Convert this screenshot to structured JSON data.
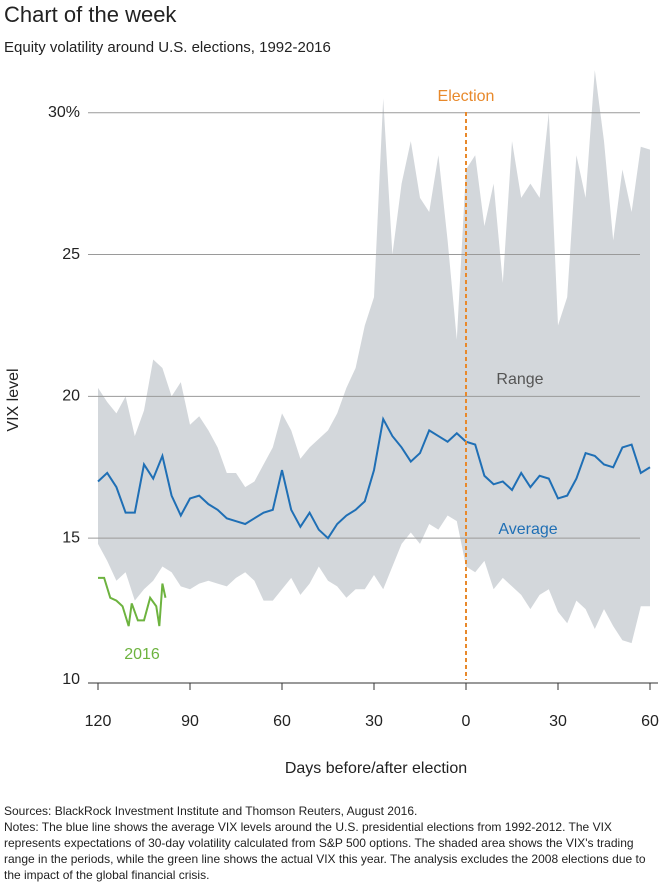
{
  "chart_data": {
    "type": "band-line",
    "title": "Chart of the week",
    "subtitle": "Equity volatility around U.S. elections, 1992-2016",
    "y_label": "VIX level",
    "x_label": "Days before/after election",
    "xlim": [
      -120,
      60
    ],
    "ylim": [
      10,
      32
    ],
    "xticks": [
      {
        "value": -120,
        "label": "120"
      },
      {
        "value": -90,
        "label": "90"
      },
      {
        "value": -60,
        "label": "60"
      },
      {
        "value": -30,
        "label": "30"
      },
      0,
      30,
      60
    ],
    "yticks": [
      10,
      15,
      20,
      25,
      {
        "value": 30,
        "label": "30%"
      }
    ],
    "grid": true,
    "annotations": [
      {
        "text": "Election",
        "x": 0,
        "color": "#e8892b"
      }
    ],
    "x": [
      -120,
      -117,
      -114,
      -111,
      -108,
      -105,
      -102,
      -99,
      -96,
      -93,
      -90,
      -87,
      -84,
      -81,
      -78,
      -75,
      -72,
      -69,
      -66,
      -63,
      -60,
      -57,
      -54,
      -51,
      -48,
      -45,
      -42,
      -39,
      -36,
      -33,
      -30,
      -27,
      -24,
      -21,
      -18,
      -15,
      -12,
      -9,
      -6,
      -3,
      0,
      3,
      6,
      9,
      12,
      15,
      18,
      21,
      24,
      27,
      30,
      33,
      36,
      39,
      42,
      45,
      48,
      51,
      54,
      57,
      60
    ],
    "series": [
      {
        "name": "Range",
        "color": "#d3d7db",
        "high": [
          20.3,
          19.8,
          19.4,
          20.0,
          18.6,
          19.5,
          21.3,
          21.0,
          20.0,
          20.5,
          19.0,
          19.3,
          18.8,
          18.2,
          17.3,
          17.3,
          16.8,
          17.0,
          17.6,
          18.2,
          19.4,
          18.8,
          17.8,
          18.2,
          18.5,
          18.8,
          19.4,
          20.3,
          21.0,
          22.5,
          23.5,
          30.5,
          25.0,
          27.5,
          29.0,
          27.0,
          26.5,
          28.5,
          25.5,
          22.0,
          28.0,
          28.5,
          26.0,
          27.5,
          24.0,
          29.0,
          27.0,
          27.5,
          27.0,
          30.0,
          22.5,
          23.5,
          28.5,
          27.0,
          31.5,
          29.0,
          25.5,
          28.0,
          26.5,
          28.8,
          28.7
        ],
        "low": [
          14.8,
          14.2,
          13.5,
          13.8,
          12.8,
          13.2,
          13.5,
          14.0,
          13.8,
          13.3,
          13.2,
          13.4,
          13.5,
          13.4,
          13.3,
          13.6,
          13.8,
          13.5,
          12.8,
          12.8,
          13.2,
          13.6,
          13.0,
          13.4,
          14.0,
          13.5,
          13.3,
          12.9,
          13.2,
          13.2,
          13.7,
          13.2,
          14.0,
          14.8,
          15.2,
          14.8,
          15.5,
          15.3,
          15.8,
          15.6,
          14.0,
          13.8,
          14.2,
          13.2,
          13.6,
          13.3,
          13.0,
          12.5,
          13.0,
          13.2,
          12.4,
          12.0,
          12.8,
          12.5,
          11.8,
          12.5,
          11.9,
          11.4,
          11.3,
          12.6,
          12.6
        ]
      },
      {
        "name": "Average",
        "color": "#1f6fb5",
        "values": [
          17.0,
          17.3,
          16.8,
          15.9,
          15.9,
          17.6,
          17.1,
          17.9,
          16.5,
          15.8,
          16.4,
          16.5,
          16.2,
          16.0,
          15.7,
          15.6,
          15.5,
          15.7,
          15.9,
          16.0,
          17.4,
          16.0,
          15.4,
          15.9,
          15.3,
          15.0,
          15.5,
          15.8,
          16.0,
          16.3,
          17.4,
          19.2,
          18.6,
          18.2,
          17.7,
          18.0,
          18.8,
          18.6,
          18.4,
          18.7,
          18.4,
          18.3,
          17.2,
          16.9,
          17.0,
          16.7,
          17.3,
          16.8,
          17.2,
          17.1,
          16.4,
          16.5,
          17.1,
          18.0,
          17.9,
          17.6,
          17.5,
          18.2,
          18.3,
          17.3,
          17.5
        ]
      },
      {
        "name": "2016",
        "color": "#6db33f",
        "x": [
          -120,
          -118,
          -116,
          -114,
          -112,
          -110,
          -109,
          -107,
          -105,
          -103,
          -101,
          -100,
          -99,
          -98
        ],
        "values": [
          13.6,
          13.6,
          12.9,
          12.8,
          12.6,
          11.9,
          12.7,
          12.1,
          12.1,
          12.9,
          12.6,
          11.9,
          13.4,
          12.9
        ]
      }
    ],
    "sources": "Sources: BlackRock Investment Institute and Thomson Reuters, August 2016.",
    "notes": "Notes: The blue line shows the average VIX levels around the U.S. presidential elections from 1992-2012. The VIX represents expectations of 30-day volatility calculated from S&P 500 options. The shaded area shows the VIX's trading range in the periods, while the green line shows the actual VIX this year. The analysis excludes the 2008 elections due to the impact of the global financial crisis."
  }
}
